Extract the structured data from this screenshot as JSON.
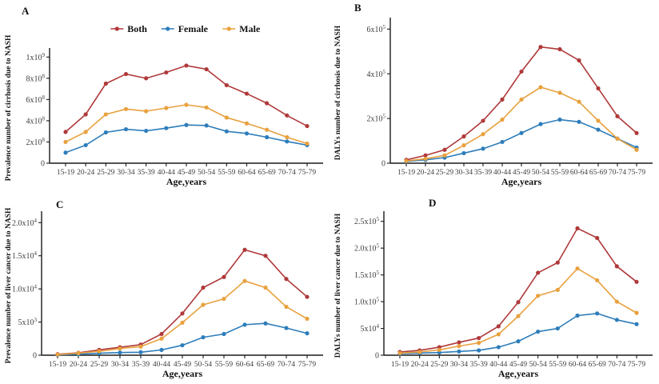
{
  "colors": {
    "both": "#b0393a",
    "female": "#2d7dbb",
    "male": "#e8a13e",
    "axis": "#1b1b1b",
    "tick_text": "#3f3f3f",
    "label_text": "#111111"
  },
  "chart_data": [
    {
      "panel_label": "A",
      "type": "line",
      "title": "",
      "xlabel": "Age,years",
      "ylabel": "Prevalence number of cirrhosis due to NASH",
      "categories": [
        "15-19",
        "20-24",
        "25-29",
        "30-34",
        "35-39",
        "40-44",
        "45-49",
        "50-54",
        "55-59",
        "60-64",
        "65-69",
        "70-74",
        "75-79"
      ],
      "ylim": [
        0,
        1040000000
      ],
      "grid": false,
      "legend_position": "top",
      "yticks": [
        {
          "value": 0,
          "label": "0",
          "sup": ""
        },
        {
          "value": 200000000,
          "label": "2x10",
          "sup": "8"
        },
        {
          "value": 400000000,
          "label": "4x10",
          "sup": "8"
        },
        {
          "value": 600000000,
          "label": "6x10",
          "sup": "8"
        },
        {
          "value": 800000000,
          "label": "8x10",
          "sup": "8"
        },
        {
          "value": 1000000000,
          "label": "1x10",
          "sup": "9"
        }
      ],
      "series": [
        {
          "name": "Both",
          "color_key": "both",
          "values": [
            295000000,
            460000000,
            750000000,
            840000000,
            800000000,
            855000000,
            920000000,
            885000000,
            735000000,
            655000000,
            565000000,
            450000000,
            350000000
          ]
        },
        {
          "name": "Female",
          "color_key": "female",
          "values": [
            100000000,
            170000000,
            290000000,
            320000000,
            305000000,
            330000000,
            360000000,
            355000000,
            300000000,
            280000000,
            245000000,
            205000000,
            170000000
          ]
        },
        {
          "name": "Male",
          "color_key": "male",
          "values": [
            200000000,
            295000000,
            460000000,
            510000000,
            490000000,
            520000000,
            550000000,
            525000000,
            430000000,
            375000000,
            315000000,
            245000000,
            185000000
          ]
        }
      ]
    },
    {
      "panel_label": "B",
      "type": "line",
      "title": "",
      "xlabel": "Age,years",
      "ylabel": "DALYs number of cirrhosis due to NASH",
      "categories": [
        "15-19",
        "20-24",
        "25-29",
        "30-34",
        "35-39",
        "40-44",
        "45-49",
        "50-54",
        "55-59",
        "60-64",
        "65-69",
        "70-74",
        "75-79"
      ],
      "ylim": [
        0,
        630000
      ],
      "grid": false,
      "legend_position": null,
      "yticks": [
        {
          "value": 0,
          "label": "0",
          "sup": ""
        },
        {
          "value": 200000,
          "label": "2x10",
          "sup": "5"
        },
        {
          "value": 400000,
          "label": "4x10",
          "sup": "5"
        },
        {
          "value": 600000,
          "label": "6x10",
          "sup": "5"
        }
      ],
      "series": [
        {
          "name": "Both",
          "color_key": "both",
          "values": [
            15000,
            35000,
            60000,
            120000,
            190000,
            285000,
            410000,
            520000,
            510000,
            460000,
            335000,
            210000,
            135000
          ]
        },
        {
          "name": "Female",
          "color_key": "female",
          "values": [
            8000,
            15000,
            25000,
            45000,
            65000,
            95000,
            135000,
            175000,
            195000,
            185000,
            150000,
            110000,
            70000
          ]
        },
        {
          "name": "Male",
          "color_key": "male",
          "values": [
            10000,
            20000,
            35000,
            80000,
            130000,
            195000,
            285000,
            340000,
            315000,
            275000,
            190000,
            110000,
            60000
          ]
        }
      ]
    },
    {
      "panel_label": "C",
      "type": "line",
      "title": "",
      "xlabel": "Age,years",
      "ylabel": "Prevalence number of liver cancer due to NASH",
      "categories": [
        "15-19",
        "20-24",
        "25-29",
        "30-34",
        "35-39",
        "40-44",
        "45-49",
        "50-54",
        "55-59",
        "60-64",
        "65-69",
        "70-74",
        "75-79"
      ],
      "ylim": [
        0,
        21000
      ],
      "grid": false,
      "legend_position": null,
      "yticks": [
        {
          "value": 0,
          "label": "0",
          "sup": ""
        },
        {
          "value": 5000,
          "label": "5x10",
          "sup": "3"
        },
        {
          "value": 10000,
          "label": "1.0x10",
          "sup": "4"
        },
        {
          "value": 15000,
          "label": "1.5x10",
          "sup": "4"
        },
        {
          "value": 20000,
          "label": "2.0x10",
          "sup": "4"
        }
      ],
      "series": [
        {
          "name": "Both",
          "color_key": "both",
          "values": [
            150,
            350,
            800,
            1200,
            1600,
            3200,
            6300,
            10200,
            11800,
            15900,
            15000,
            11500,
            8800
          ]
        },
        {
          "name": "Female",
          "color_key": "female",
          "values": [
            50,
            150,
            300,
            400,
            450,
            800,
            1500,
            2700,
            3200,
            4600,
            4800,
            4100,
            3300
          ]
        },
        {
          "name": "Male",
          "color_key": "male",
          "values": [
            100,
            300,
            600,
            1000,
            1300,
            2500,
            4900,
            7600,
            8500,
            11200,
            10200,
            7300,
            5500
          ]
        }
      ]
    },
    {
      "panel_label": "D",
      "type": "line",
      "title": "",
      "xlabel": "Age,years",
      "ylabel": "DALYs number of liver cancer due to NASH",
      "categories": [
        "15-19",
        "20-24",
        "25-29",
        "30-34",
        "35-39",
        "40-44",
        "45-49",
        "50-54",
        "55-59",
        "60-64",
        "65-69",
        "70-74",
        "75-79"
      ],
      "ylim": [
        0,
        260000
      ],
      "grid": false,
      "legend_position": null,
      "yticks": [
        {
          "value": 0,
          "label": "0",
          "sup": ""
        },
        {
          "value": 50000,
          "label": "5x10",
          "sup": "4"
        },
        {
          "value": 100000,
          "label": "1.0x10",
          "sup": "5"
        },
        {
          "value": 150000,
          "label": "1.5x10",
          "sup": "5"
        },
        {
          "value": 200000,
          "label": "2.0x10",
          "sup": "5"
        },
        {
          "value": 250000,
          "label": "2.5x10",
          "sup": "5"
        }
      ],
      "series": [
        {
          "name": "Both",
          "color_key": "both",
          "values": [
            6000,
            9000,
            15000,
            24000,
            32000,
            54000,
            99000,
            154000,
            173000,
            237000,
            219000,
            166000,
            137000
          ]
        },
        {
          "name": "Female",
          "color_key": "female",
          "values": [
            3000,
            4000,
            5000,
            7000,
            9000,
            15000,
            26000,
            44000,
            50000,
            74000,
            78000,
            66000,
            58000
          ]
        },
        {
          "name": "Male",
          "color_key": "male",
          "values": [
            4000,
            6000,
            10000,
            17000,
            23000,
            39000,
            73000,
            111000,
            122000,
            162000,
            140000,
            100000,
            79000
          ]
        }
      ]
    }
  ]
}
